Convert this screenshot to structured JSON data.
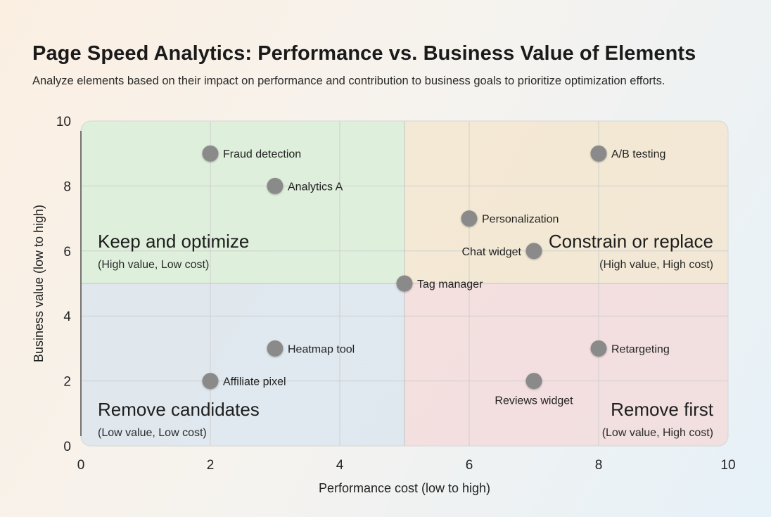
{
  "chart_data": {
    "type": "scatter",
    "title": "Page Speed Analytics: Performance vs. Business Value of Elements",
    "subtitle": "Analyze elements based on their impact on performance and contribution to business goals to prioritize optimization efforts.",
    "xlabel": "Performance cost (low to high)",
    "ylabel": "Business value (low to high)",
    "xlim": [
      0,
      10
    ],
    "ylim": [
      0,
      10
    ],
    "xticks": [
      0,
      2,
      4,
      6,
      8,
      10
    ],
    "yticks": [
      0,
      2,
      4,
      6,
      8,
      10
    ],
    "grid": true,
    "point_color": "#8a8a8a",
    "points": [
      {
        "label": "Fraud detection",
        "x": 2,
        "y": 9
      },
      {
        "label": "Analytics A",
        "x": 3,
        "y": 8
      },
      {
        "label": "A/B testing",
        "x": 8,
        "y": 9
      },
      {
        "label": "Personalization",
        "x": 6,
        "y": 7
      },
      {
        "label": "Chat widget",
        "x": 7,
        "y": 6
      },
      {
        "label": "Tag manager",
        "x": 5,
        "y": 5
      },
      {
        "label": "Heatmap tool",
        "x": 3,
        "y": 3
      },
      {
        "label": "Affiliate pixel",
        "x": 2,
        "y": 2
      },
      {
        "label": "Retargeting",
        "x": 8,
        "y": 3
      },
      {
        "label": "Reviews widget",
        "x": 7,
        "y": 2,
        "label_position": "below"
      }
    ],
    "quadrants": [
      {
        "title": "Keep and optimize",
        "note": "(High value, Low cost)",
        "position": "top-left",
        "color": "#d9efd8"
      },
      {
        "title": "Constrain or replace",
        "note": "(High value, High cost)",
        "position": "top-right",
        "color": "#f3e6cf"
      },
      {
        "title": "Remove candidates",
        "note": "(Low value, Low cost)",
        "position": "bottom-left",
        "color": "#dce6ee"
      },
      {
        "title": "Remove first",
        "note": "(Low value, High cost)",
        "position": "bottom-right",
        "color": "#f3dcdc"
      }
    ]
  }
}
